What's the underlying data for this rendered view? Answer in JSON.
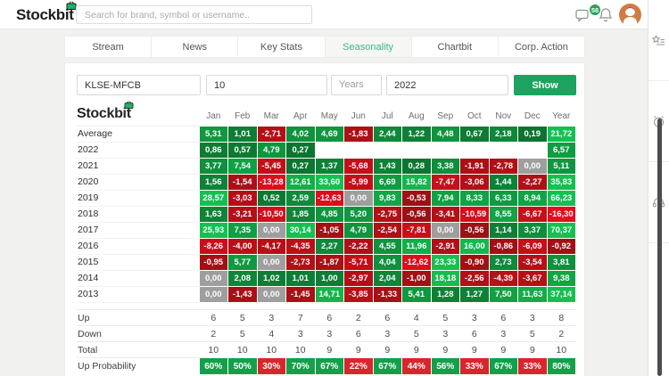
{
  "topbar": {
    "logo_text": "Stockbit",
    "search_placeholder": "Search for brand, symbol or username..",
    "notification_count": "58"
  },
  "tabs": [
    {
      "label": "Stream",
      "active": false
    },
    {
      "label": "News",
      "active": false
    },
    {
      "label": "Key Stats",
      "active": false
    },
    {
      "label": "Seasonality",
      "active": true
    },
    {
      "label": "Chartbit",
      "active": false
    },
    {
      "label": "Corp. Action",
      "active": false
    }
  ],
  "form": {
    "symbol_value": "KLSE-MFCB",
    "period_value": "10",
    "period_unit": "Years",
    "year_value": "2022",
    "show_label": "Show"
  },
  "table": {
    "watermark": "Stockbit",
    "columns": [
      "Jan",
      "Feb",
      "Mar",
      "Apr",
      "May",
      "Jun",
      "Jul",
      "Aug",
      "Sep",
      "Oct",
      "Nov",
      "Dec",
      "Year"
    ],
    "rows": [
      {
        "label": "Average",
        "values": [
          "5,31",
          "1,01",
          "-2,71",
          "4,02",
          "4,69",
          "-1,83",
          "2,44",
          "1,22",
          "4,48",
          "0,67",
          "2,18",
          "0,19",
          "21,72"
        ]
      },
      {
        "label": "2022",
        "values": [
          "0,86",
          "0,57",
          "4,79",
          "0,27",
          "",
          "",
          "",
          "",
          "",
          "",
          "",
          "",
          "6,57"
        ]
      },
      {
        "label": "2021",
        "values": [
          "3,77",
          "7,54",
          "-5,45",
          "0,27",
          "1,37",
          "-5,68",
          "1,43",
          "0,28",
          "3,38",
          "-1,91",
          "-2,78",
          "0,00",
          "5,11"
        ]
      },
      {
        "label": "2020",
        "values": [
          "1,56",
          "-1,54",
          "-13,28",
          "12,61",
          "33,60",
          "-5,99",
          "6,69",
          "15,82",
          "-7,47",
          "-3,06",
          "1,44",
          "-2,27",
          "35,83"
        ]
      },
      {
        "label": "2019",
        "values": [
          "28,57",
          "-3,03",
          "0,52",
          "2,59",
          "-12,63",
          "0,00",
          "9,83",
          "-0,53",
          "7,94",
          "8,33",
          "6,33",
          "8,94",
          "66,23"
        ]
      },
      {
        "label": "2018",
        "values": [
          "1,63",
          "-3,21",
          "-10,50",
          "1,85",
          "4,85",
          "5,20",
          "-2,75",
          "-0,56",
          "-3,41",
          "-10,59",
          "8,55",
          "-6,67",
          "-16,30"
        ]
      },
      {
        "label": "2017",
        "values": [
          "25,93",
          "7,35",
          "0,00",
          "30,14",
          "-1,05",
          "4,79",
          "-2,54",
          "-7,81",
          "0,00",
          "-0,56",
          "1,14",
          "3,37",
          "70,37"
        ]
      },
      {
        "label": "2016",
        "values": [
          "-8,26",
          "-4,00",
          "-4,17",
          "-4,35",
          "2,27",
          "-2,22",
          "4,55",
          "11,96",
          "-2,91",
          "16,00",
          "-0,86",
          "-6,09",
          "-0,92"
        ]
      },
      {
        "label": "2015",
        "values": [
          "-0,95",
          "5,77",
          "0,00",
          "-2,73",
          "-1,87",
          "-5,71",
          "4,04",
          "-12,62",
          "23,33",
          "-0,90",
          "2,73",
          "-3,54",
          "3,81"
        ]
      },
      {
        "label": "2014",
        "values": [
          "0,00",
          "2,08",
          "1,02",
          "1,01",
          "1,00",
          "-2,97",
          "2,04",
          "-1,00",
          "18,18",
          "-2,56",
          "-4,39",
          "-3,67",
          "9,38"
        ]
      },
      {
        "label": "2013",
        "values": [
          "0,00",
          "-1,43",
          "0,00",
          "-1,45",
          "14,71",
          "-3,85",
          "-1,33",
          "5,41",
          "1,28",
          "1,27",
          "7,50",
          "11,63",
          "37,14"
        ]
      }
    ],
    "summary": [
      {
        "label": "Up",
        "type": "count",
        "values": [
          "6",
          "5",
          "3",
          "7",
          "6",
          "2",
          "6",
          "4",
          "5",
          "3",
          "6",
          "3",
          "8"
        ]
      },
      {
        "label": "Down",
        "type": "count",
        "values": [
          "2",
          "5",
          "4",
          "3",
          "3",
          "6",
          "3",
          "5",
          "3",
          "6",
          "3",
          "5",
          "2"
        ]
      },
      {
        "label": "Total",
        "type": "count",
        "values": [
          "10",
          "10",
          "10",
          "10",
          "9",
          "9",
          "9",
          "9",
          "9",
          "9",
          "9",
          "9",
          "10"
        ]
      },
      {
        "label": "Up Probability",
        "type": "probability",
        "values": [
          "60%",
          "50%",
          "30%",
          "70%",
          "67%",
          "22%",
          "67%",
          "44%",
          "56%",
          "33%",
          "67%",
          "33%",
          "80%"
        ]
      }
    ]
  },
  "rail_icons": [
    "watchlist-icon",
    "alarm-icon",
    "support-headset-icon"
  ],
  "palette": {
    "accent_green": "#1ca35f",
    "tab_active": "#3bb98b",
    "badge": "#23a455",
    "pos_low": "#0b6b2d",
    "pos_high": "#14c150",
    "neg_low": "#8e1111",
    "neg_high": "#ef0d1f",
    "zero_cell": "#9e9e9e",
    "prob_up": "#12a04a",
    "prob_down": "#d8262c"
  }
}
